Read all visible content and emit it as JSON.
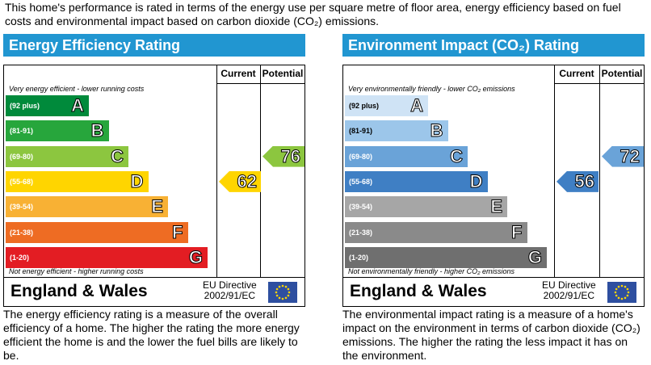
{
  "intro": "This home's performance is rated in terms of the energy use per square metre of floor area, energy efficiency based on fuel costs and environmental impact based on carbon dioxide (CO₂) emissions.",
  "chart_data": [
    {
      "type": "bar",
      "title": "Energy Efficiency Rating",
      "title_color": "#2196d1",
      "columns": [
        "Current",
        "Potential"
      ],
      "top_note": "Very energy efficient - lower running costs",
      "bottom_note": "Not energy efficient - higher running costs",
      "bands": [
        {
          "range": "(92 plus)",
          "letter": "A",
          "min": 92,
          "max": 100,
          "color": "#008a3b"
        },
        {
          "range": "(81-91)",
          "letter": "B",
          "min": 81,
          "max": 91,
          "color": "#27a63c"
        },
        {
          "range": "(69-80)",
          "letter": "C",
          "min": 69,
          "max": 80,
          "color": "#8cc63f"
        },
        {
          "range": "(55-68)",
          "letter": "D",
          "min": 55,
          "max": 68,
          "color": "#ffd500"
        },
        {
          "range": "(39-54)",
          "letter": "E",
          "min": 39,
          "max": 54,
          "color": "#f8b134"
        },
        {
          "range": "(21-38)",
          "letter": "F",
          "min": 21,
          "max": 38,
          "color": "#ee6c23"
        },
        {
          "range": "(1-20)",
          "letter": "G",
          "min": 1,
          "max": 20,
          "color": "#e31d23"
        }
      ],
      "current": {
        "value": 62,
        "band": "D",
        "color": "#ffd500"
      },
      "potential": {
        "value": 76,
        "band": "C",
        "color": "#8cc63f"
      },
      "region": "England & Wales",
      "directive": [
        "EU Directive",
        "2002/91/EC"
      ],
      "description": "The energy efficiency rating is a measure of the overall efficiency of a home. The higher the rating the more energy efficient the home is and the lower the fuel bills are likely to be."
    },
    {
      "type": "bar",
      "title": "Environment Impact (CO₂) Rating",
      "title_color": "#2196d1",
      "columns": [
        "Current",
        "Potential"
      ],
      "top_note": "Very environmentally friendly - lower CO₂ emissions",
      "bottom_note": "Not environmentally friendly - higher CO₂ emissions",
      "bands": [
        {
          "range": "(92 plus)",
          "letter": "A",
          "min": 92,
          "max": 100,
          "color": "#cfe3f5"
        },
        {
          "range": "(81-91)",
          "letter": "B",
          "min": 81,
          "max": 91,
          "color": "#9cc6ea"
        },
        {
          "range": "(69-80)",
          "letter": "C",
          "min": 69,
          "max": 80,
          "color": "#6aa3d8"
        },
        {
          "range": "(55-68)",
          "letter": "D",
          "min": 55,
          "max": 68,
          "color": "#3f7fc4"
        },
        {
          "range": "(39-54)",
          "letter": "E",
          "min": 39,
          "max": 54,
          "color": "#a6a6a6"
        },
        {
          "range": "(21-38)",
          "letter": "F",
          "min": 21,
          "max": 38,
          "color": "#8a8a8a"
        },
        {
          "range": "(1-20)",
          "letter": "G",
          "min": 1,
          "max": 20,
          "color": "#6f6f6f"
        }
      ],
      "current": {
        "value": 56,
        "band": "D",
        "color": "#3f7fc4"
      },
      "potential": {
        "value": 72,
        "band": "C",
        "color": "#6aa3d8"
      },
      "region": "England & Wales",
      "directive": [
        "EU Directive",
        "2002/91/EC"
      ],
      "description": "The environmental impact rating is a measure of a home's impact on the environment in terms of carbon dioxide (CO₂) emissions. The higher the rating the less impact it has on the environment."
    }
  ]
}
